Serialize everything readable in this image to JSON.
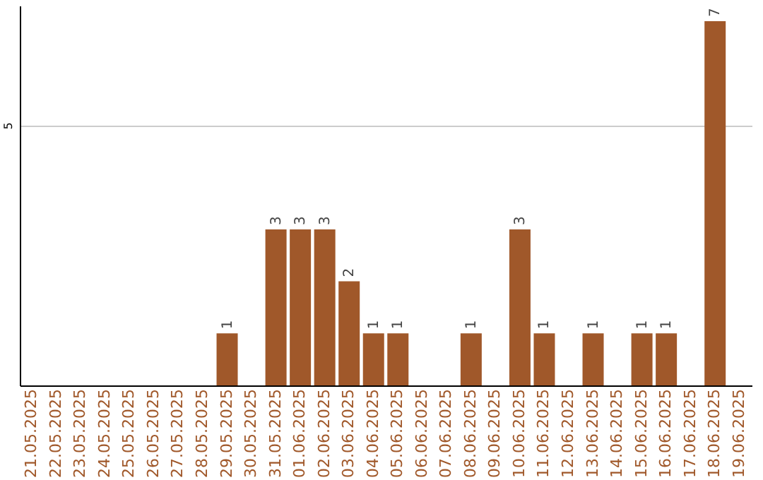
{
  "chart_data": {
    "type": "bar",
    "categories": [
      "21.05.2025",
      "22.05.2025",
      "23.05.2025",
      "24.05.2025",
      "25.05.2025",
      "26.05.2025",
      "27.05.2025",
      "28.05.2025",
      "29.05.2025",
      "30.05.2025",
      "31.05.2025",
      "01.06.2025",
      "02.06.2025",
      "03.06.2025",
      "04.06.2025",
      "05.06.2025",
      "06.06.2025",
      "07.06.2025",
      "08.06.2025",
      "09.06.2025",
      "10.06.2025",
      "11.06.2025",
      "12.06.2025",
      "13.06.2025",
      "14.06.2025",
      "15.06.2025",
      "16.06.2025",
      "17.06.2025",
      "18.06.2025",
      "19.06.2025"
    ],
    "values": [
      0,
      0,
      0,
      0,
      0,
      0,
      0,
      0,
      1,
      0,
      3,
      3,
      3,
      2,
      1,
      1,
      0,
      0,
      1,
      0,
      3,
      1,
      0,
      1,
      0,
      1,
      1,
      0,
      7,
      0
    ],
    "value_labels": [
      null,
      null,
      null,
      null,
      null,
      null,
      null,
      null,
      "1",
      null,
      "3",
      "3",
      "3",
      "2",
      "1",
      "1",
      null,
      null,
      "1",
      null,
      "3",
      "1",
      null,
      "1",
      null,
      "1",
      "1",
      null,
      "7",
      null
    ],
    "color": "#a0582a",
    "ylim": [
      0,
      7.3
    ],
    "yticks": [
      5
    ],
    "grid": "y"
  }
}
